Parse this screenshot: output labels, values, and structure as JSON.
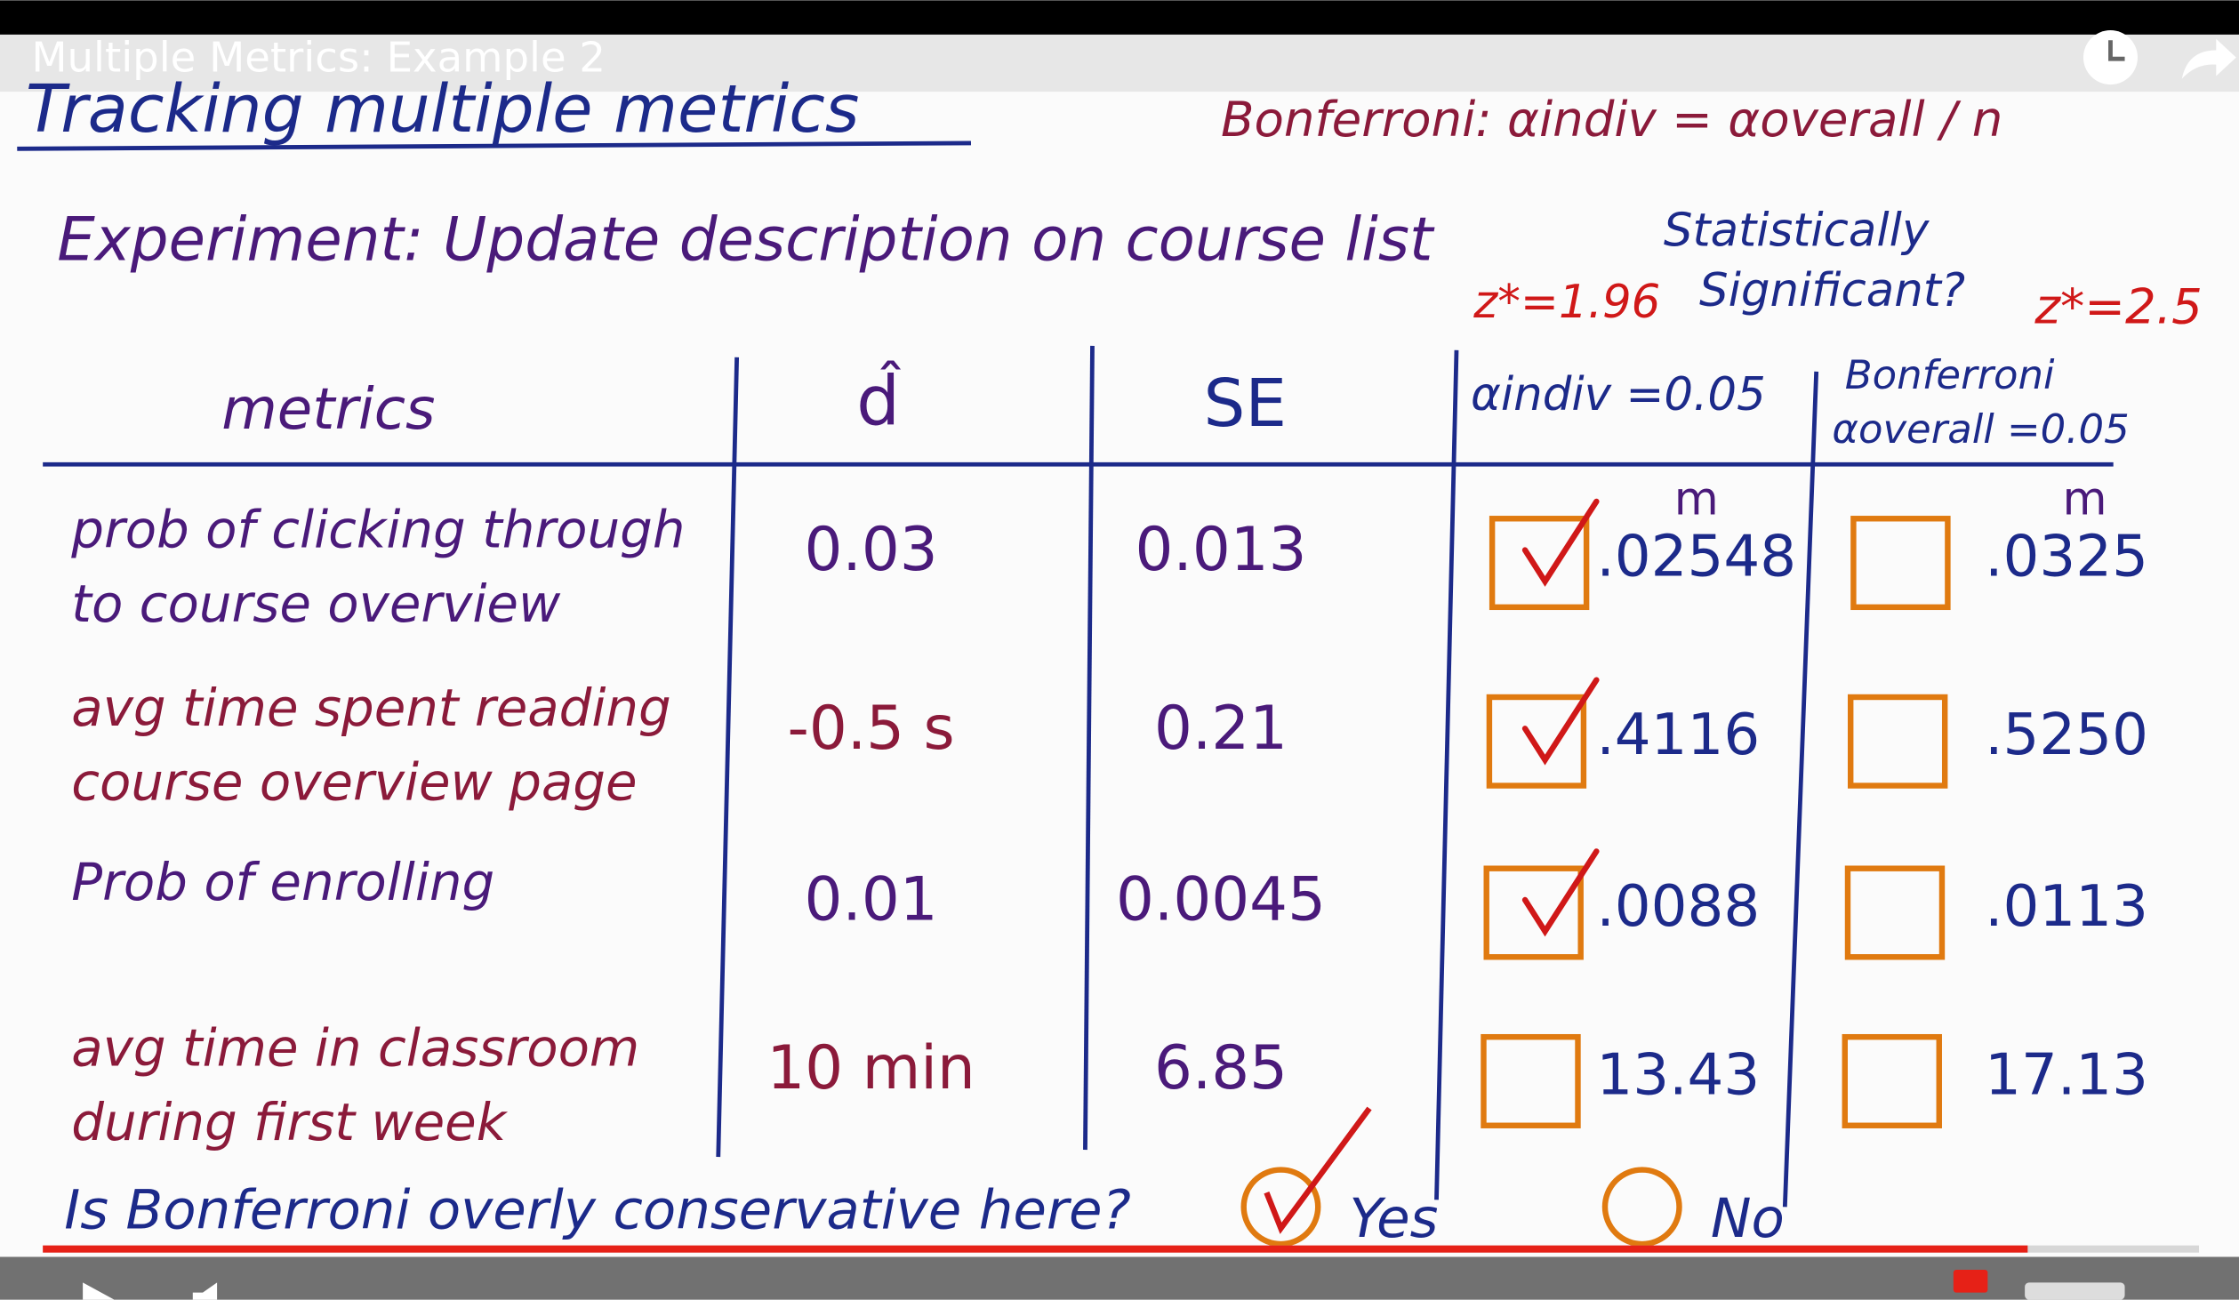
{
  "video_title": "Multiple Metrics: Example 2",
  "board": {
    "heading": "Tracking multiple metrics",
    "formula": "Bonferroni: αindiv = αoverall / n",
    "experiment": "Experiment: Update description on course list",
    "significance": [
      "Statistically",
      "Significant?"
    ],
    "z_indiv": "z*=1.96",
    "z_bonferroni": "z*=2.5"
  },
  "table": {
    "headers": {
      "metrics": "metrics",
      "d": "d̂",
      "se": "SE",
      "indiv": "αindiv =0.05",
      "bonferroni": [
        "Bonferroni",
        "αoverall =0.05"
      ],
      "m_indiv": "m",
      "m_bonferroni": "m"
    },
    "rows": [
      {
        "metric": [
          "prob of clicking through",
          "to course overview"
        ],
        "d": "0.03",
        "se": "0.013",
        "indiv_checked": true,
        "indiv_m": ".02548",
        "bonf_checked": false,
        "bonf_m": ".0325"
      },
      {
        "metric": [
          "avg time spent reading",
          "course overview page"
        ],
        "d": "-0.5 s",
        "se": "0.21",
        "indiv_checked": true,
        "indiv_m": ".4116",
        "bonf_checked": false,
        "bonf_m": ".5250"
      },
      {
        "metric": [
          "Prob of enrolling"
        ],
        "d": "0.01",
        "se": "0.0045",
        "indiv_checked": true,
        "indiv_m": ".0088",
        "bonf_checked": false,
        "bonf_m": ".0113"
      },
      {
        "metric": [
          "avg time in classroom",
          "during first week"
        ],
        "d": "10 min",
        "se": "6.85",
        "indiv_checked": false,
        "indiv_m": "13.43",
        "bonf_checked": false,
        "bonf_m": "17.13"
      }
    ]
  },
  "question": {
    "text": "Is Bonferroni overly conservative here?",
    "options": [
      {
        "label": "Yes",
        "selected": true
      },
      {
        "label": "No",
        "selected": false
      }
    ]
  }
}
